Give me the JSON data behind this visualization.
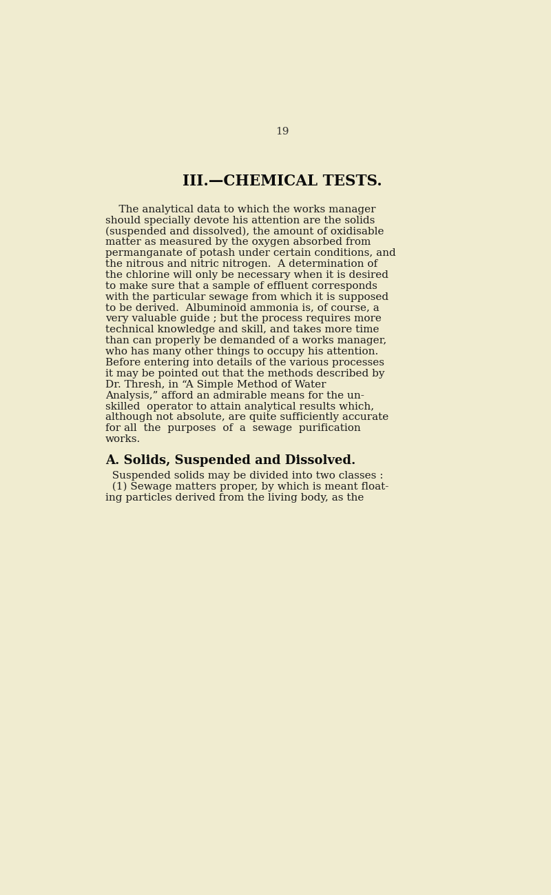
{
  "background_color": "#f0ecd0",
  "page_number": "19",
  "title": "III.—CHEMICAL TESTS.",
  "text_color": "#1a1a1a",
  "title_color": "#0d0d0d",
  "page_num_color": "#333333",
  "font_size_body": 11.0,
  "font_size_title": 15.5,
  "font_size_section": 13.0,
  "font_size_page_num": 11.0,
  "body_lines": [
    "    The analytical data to which the works manager",
    "should specially devote his attention are the solids",
    "(suspended and dissolved), the amount of oxidisable",
    "matter as measured by the oxygen absorbed from",
    "permanganate of potash under certain conditions, and",
    "the nitrous and nitric nitrogen.  A determination of",
    "the chlorine will only be necessary when it is desired",
    "to make sure that a sample of effluent corresponds",
    "with the particular sewage from which it is supposed",
    "to be derived.  Albuminoid ammonia is, of course, a",
    "very valuable guide ; but the process requires more",
    "technical knowledge and skill, and takes more time",
    "than can properly be demanded of a works manager,",
    "who has many other things to occupy his attention.",
    "Before entering into details of the various processes",
    "it may be pointed out that the methods described by",
    "Dr. Thresh, in “A Simple Method of Water",
    "Analysis,” afford an admirable means for the un-",
    "skilled  operator to attain analytical results which,",
    "although not absolute, are quite sufficiently accurate",
    "for all  the  purposes  of  a  sewage  purification",
    "works."
  ],
  "section_heading": "A. Solids, Suspended and Dissolved.",
  "section_lines": [
    "  Suspended solids may be divided into two classes :",
    "  (1) Sewage matters proper, by which is meant float-",
    "ing particles derived from the living body, as the"
  ]
}
